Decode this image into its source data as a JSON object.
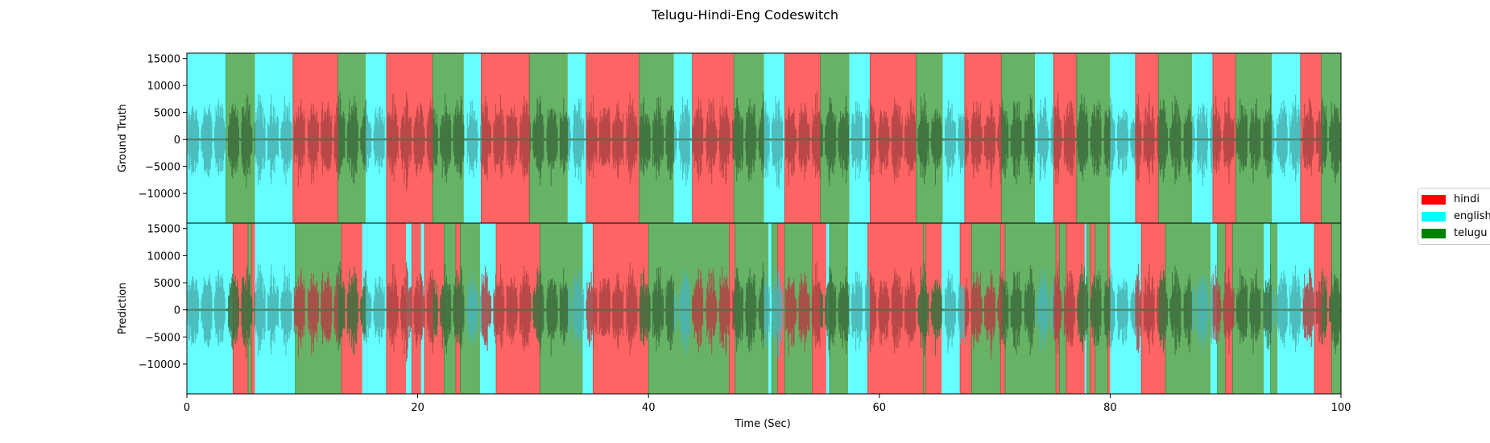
{
  "chart_data": {
    "type": "area",
    "title": "Telugu-Hindi-Eng Codeswitch",
    "xlabel": "Time (Sec)",
    "x_ticks": [
      0,
      20,
      40,
      60,
      80,
      100
    ],
    "xlim": [
      0,
      100
    ],
    "y_ticks": [
      15000,
      10000,
      5000,
      0,
      -5000,
      -10000
    ],
    "y_tick_labels": [
      "15000",
      "10000",
      "5000",
      "0",
      "−5000",
      "−10000"
    ],
    "ylim": [
      -15500,
      16000
    ],
    "legend_position": "right",
    "legend": [
      {
        "label": "hindi",
        "color": "#ff0000"
      },
      {
        "label": "english",
        "color": "#00ffff"
      },
      {
        "label": "telugu",
        "color": "#008000"
      }
    ],
    "label_colors": {
      "hindi": "#ff6464",
      "english": "#66ffff",
      "telugu": "#66b366"
    },
    "panels": [
      {
        "ylabel": "Ground Truth",
        "segments": [
          {
            "label": "english",
            "start": 0.0,
            "end": 3.4
          },
          {
            "label": "telugu",
            "start": 3.4,
            "end": 5.9
          },
          {
            "label": "english",
            "start": 5.9,
            "end": 9.2
          },
          {
            "label": "hindi",
            "start": 9.2,
            "end": 13.1
          },
          {
            "label": "telugu",
            "start": 13.1,
            "end": 15.5
          },
          {
            "label": "english",
            "start": 15.5,
            "end": 17.3
          },
          {
            "label": "hindi",
            "start": 17.3,
            "end": 21.3
          },
          {
            "label": "telugu",
            "start": 21.3,
            "end": 24.0
          },
          {
            "label": "english",
            "start": 24.0,
            "end": 25.5
          },
          {
            "label": "hindi",
            "start": 25.5,
            "end": 29.7
          },
          {
            "label": "telugu",
            "start": 29.7,
            "end": 33.0
          },
          {
            "label": "english",
            "start": 33.0,
            "end": 34.6
          },
          {
            "label": "hindi",
            "start": 34.6,
            "end": 39.2
          },
          {
            "label": "telugu",
            "start": 39.2,
            "end": 42.2
          },
          {
            "label": "english",
            "start": 42.2,
            "end": 43.8
          },
          {
            "label": "hindi",
            "start": 43.8,
            "end": 47.4
          },
          {
            "label": "telugu",
            "start": 47.4,
            "end": 50.0
          },
          {
            "label": "english",
            "start": 50.0,
            "end": 51.8
          },
          {
            "label": "hindi",
            "start": 51.8,
            "end": 54.9
          },
          {
            "label": "telugu",
            "start": 54.9,
            "end": 57.4
          },
          {
            "label": "english",
            "start": 57.4,
            "end": 59.2
          },
          {
            "label": "hindi",
            "start": 59.2,
            "end": 63.2
          },
          {
            "label": "telugu",
            "start": 63.2,
            "end": 65.5
          },
          {
            "label": "english",
            "start": 65.5,
            "end": 67.4
          },
          {
            "label": "hindi",
            "start": 67.4,
            "end": 70.6
          },
          {
            "label": "telugu",
            "start": 70.6,
            "end": 73.5
          },
          {
            "label": "english",
            "start": 73.5,
            "end": 75.1
          },
          {
            "label": "hindi",
            "start": 75.1,
            "end": 77.1
          },
          {
            "label": "telugu",
            "start": 77.1,
            "end": 80.0
          },
          {
            "label": "english",
            "start": 80.0,
            "end": 82.2
          },
          {
            "label": "hindi",
            "start": 82.2,
            "end": 84.2
          },
          {
            "label": "telugu",
            "start": 84.2,
            "end": 87.1
          },
          {
            "label": "english",
            "start": 87.1,
            "end": 88.9
          },
          {
            "label": "hindi",
            "start": 88.9,
            "end": 90.9
          },
          {
            "label": "telugu",
            "start": 90.9,
            "end": 94.0
          },
          {
            "label": "english",
            "start": 94.0,
            "end": 96.5
          },
          {
            "label": "hindi",
            "start": 96.5,
            "end": 98.3
          },
          {
            "label": "telugu",
            "start": 98.3,
            "end": 100.0
          }
        ]
      },
      {
        "ylabel": "Prediction",
        "segments": [
          {
            "label": "english",
            "start": 0.0,
            "end": 4.0
          },
          {
            "label": "hindi",
            "start": 4.0,
            "end": 5.3
          },
          {
            "label": "telugu",
            "start": 5.3,
            "end": 5.6
          },
          {
            "label": "hindi",
            "start": 5.6,
            "end": 5.9
          },
          {
            "label": "english",
            "start": 5.9,
            "end": 9.4
          },
          {
            "label": "telugu",
            "start": 9.4,
            "end": 13.4
          },
          {
            "label": "hindi",
            "start": 13.4,
            "end": 15.2
          },
          {
            "label": "english",
            "start": 15.2,
            "end": 17.3
          },
          {
            "label": "hindi",
            "start": 17.3,
            "end": 19.0
          },
          {
            "label": "english",
            "start": 19.0,
            "end": 19.5
          },
          {
            "label": "hindi",
            "start": 19.5,
            "end": 20.3
          },
          {
            "label": "english",
            "start": 20.3,
            "end": 20.6
          },
          {
            "label": "hindi",
            "start": 20.6,
            "end": 22.3
          },
          {
            "label": "telugu",
            "start": 22.3,
            "end": 23.3
          },
          {
            "label": "hindi",
            "start": 23.3,
            "end": 23.7
          },
          {
            "label": "telugu",
            "start": 23.7,
            "end": 25.4
          },
          {
            "label": "english",
            "start": 25.4,
            "end": 26.8
          },
          {
            "label": "hindi",
            "start": 26.8,
            "end": 30.6
          },
          {
            "label": "telugu",
            "start": 30.6,
            "end": 34.3
          },
          {
            "label": "english",
            "start": 34.3,
            "end": 35.2
          },
          {
            "label": "hindi",
            "start": 35.2,
            "end": 40.0
          },
          {
            "label": "telugu",
            "start": 40.0,
            "end": 47.0
          },
          {
            "label": "hindi",
            "start": 47.0,
            "end": 47.5
          },
          {
            "label": "telugu",
            "start": 47.5,
            "end": 50.4
          },
          {
            "label": "english",
            "start": 50.4,
            "end": 50.7
          },
          {
            "label": "telugu",
            "start": 50.7,
            "end": 51.2
          },
          {
            "label": "hindi",
            "start": 51.2,
            "end": 51.8
          },
          {
            "label": "telugu",
            "start": 51.8,
            "end": 54.2
          },
          {
            "label": "hindi",
            "start": 54.2,
            "end": 55.4
          },
          {
            "label": "english",
            "start": 55.4,
            "end": 55.7
          },
          {
            "label": "telugu",
            "start": 55.7,
            "end": 57.3
          },
          {
            "label": "english",
            "start": 57.3,
            "end": 59.0
          },
          {
            "label": "hindi",
            "start": 59.0,
            "end": 63.8
          },
          {
            "label": "telugu",
            "start": 63.8,
            "end": 64.0
          },
          {
            "label": "hindi",
            "start": 64.0,
            "end": 65.4
          },
          {
            "label": "english",
            "start": 65.4,
            "end": 67.0
          },
          {
            "label": "hindi",
            "start": 67.0,
            "end": 68.0
          },
          {
            "label": "telugu",
            "start": 68.0,
            "end": 70.5
          },
          {
            "label": "hindi",
            "start": 70.5,
            "end": 70.9
          },
          {
            "label": "telugu",
            "start": 70.9,
            "end": 75.3
          },
          {
            "label": "hindi",
            "start": 75.3,
            "end": 75.6
          },
          {
            "label": "telugu",
            "start": 75.6,
            "end": 76.2
          },
          {
            "label": "hindi",
            "start": 76.2,
            "end": 77.8
          },
          {
            "label": "english",
            "start": 77.8,
            "end": 78.0
          },
          {
            "label": "telugu",
            "start": 78.0,
            "end": 78.3
          },
          {
            "label": "hindi",
            "start": 78.3,
            "end": 78.7
          },
          {
            "label": "telugu",
            "start": 78.7,
            "end": 79.8
          },
          {
            "label": "hindi",
            "start": 79.8,
            "end": 80.0
          },
          {
            "label": "english",
            "start": 80.0,
            "end": 82.7
          },
          {
            "label": "hindi",
            "start": 82.7,
            "end": 84.8
          },
          {
            "label": "telugu",
            "start": 84.8,
            "end": 88.7
          },
          {
            "label": "english",
            "start": 88.7,
            "end": 89.3
          },
          {
            "label": "telugu",
            "start": 89.3,
            "end": 90.0
          },
          {
            "label": "hindi",
            "start": 90.0,
            "end": 90.6
          },
          {
            "label": "telugu",
            "start": 90.6,
            "end": 93.3
          },
          {
            "label": "english",
            "start": 93.3,
            "end": 93.9
          },
          {
            "label": "telugu",
            "start": 93.9,
            "end": 94.5
          },
          {
            "label": "english",
            "start": 94.5,
            "end": 97.7
          },
          {
            "label": "hindi",
            "start": 97.7,
            "end": 99.2
          },
          {
            "label": "telugu",
            "start": 99.2,
            "end": 100.0
          }
        ]
      }
    ]
  }
}
